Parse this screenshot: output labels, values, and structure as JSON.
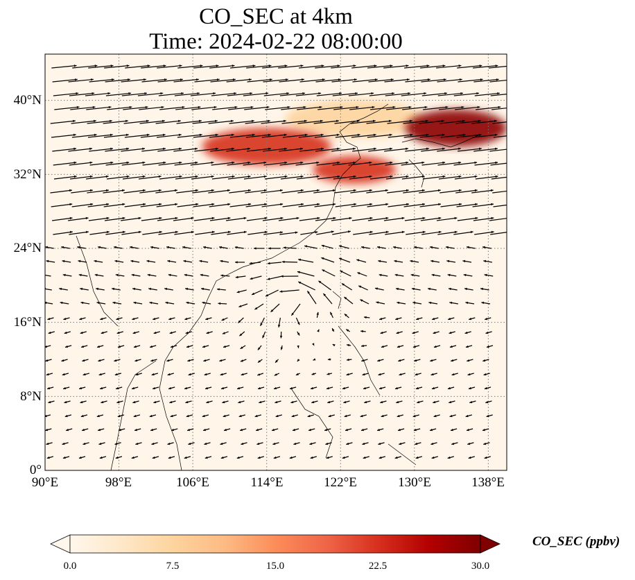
{
  "title": {
    "line1": "CO_SEC at 4km",
    "line2": "Time: 2024-02-22 08:00:00"
  },
  "map": {
    "lon_range": [
      90,
      140
    ],
    "lat_range": [
      0,
      45
    ],
    "gridlines": true,
    "lat_ticks": [
      "0°",
      "8°N",
      "16°N",
      "24°N",
      "32°N",
      "40°N"
    ],
    "lon_ticks": [
      "90°E",
      "98°E",
      "106°E",
      "114°E",
      "122°E",
      "130°E",
      "138°E"
    ],
    "field": "CO_SEC concentration at 4 km with wind vectors",
    "high_concentration_regions": [
      {
        "lon": [
          107,
          121
        ],
        "lat": [
          33,
          37
        ],
        "level": "high"
      },
      {
        "lon": [
          119,
          128
        ],
        "lat": [
          31,
          34
        ],
        "level": "high"
      },
      {
        "lon": [
          129,
          140
        ],
        "lat": [
          35,
          39
        ],
        "level": "very high"
      },
      {
        "lon": [
          116,
          131
        ],
        "lat": [
          36,
          40
        ],
        "level": "moderate"
      }
    ]
  },
  "colorbar": {
    "label": "CO_SEC (ppbv)",
    "ticks": [
      "0.0",
      "7.5",
      "15.0",
      "22.5",
      "30.0"
    ],
    "range": [
      0,
      30
    ],
    "colormap": "OrRd",
    "colors": [
      "#fff7ec",
      "#fee8c8",
      "#fdd49e",
      "#fdbb84",
      "#fc8d59",
      "#ef6548",
      "#d7301f",
      "#b30000",
      "#7f0000"
    ]
  }
}
